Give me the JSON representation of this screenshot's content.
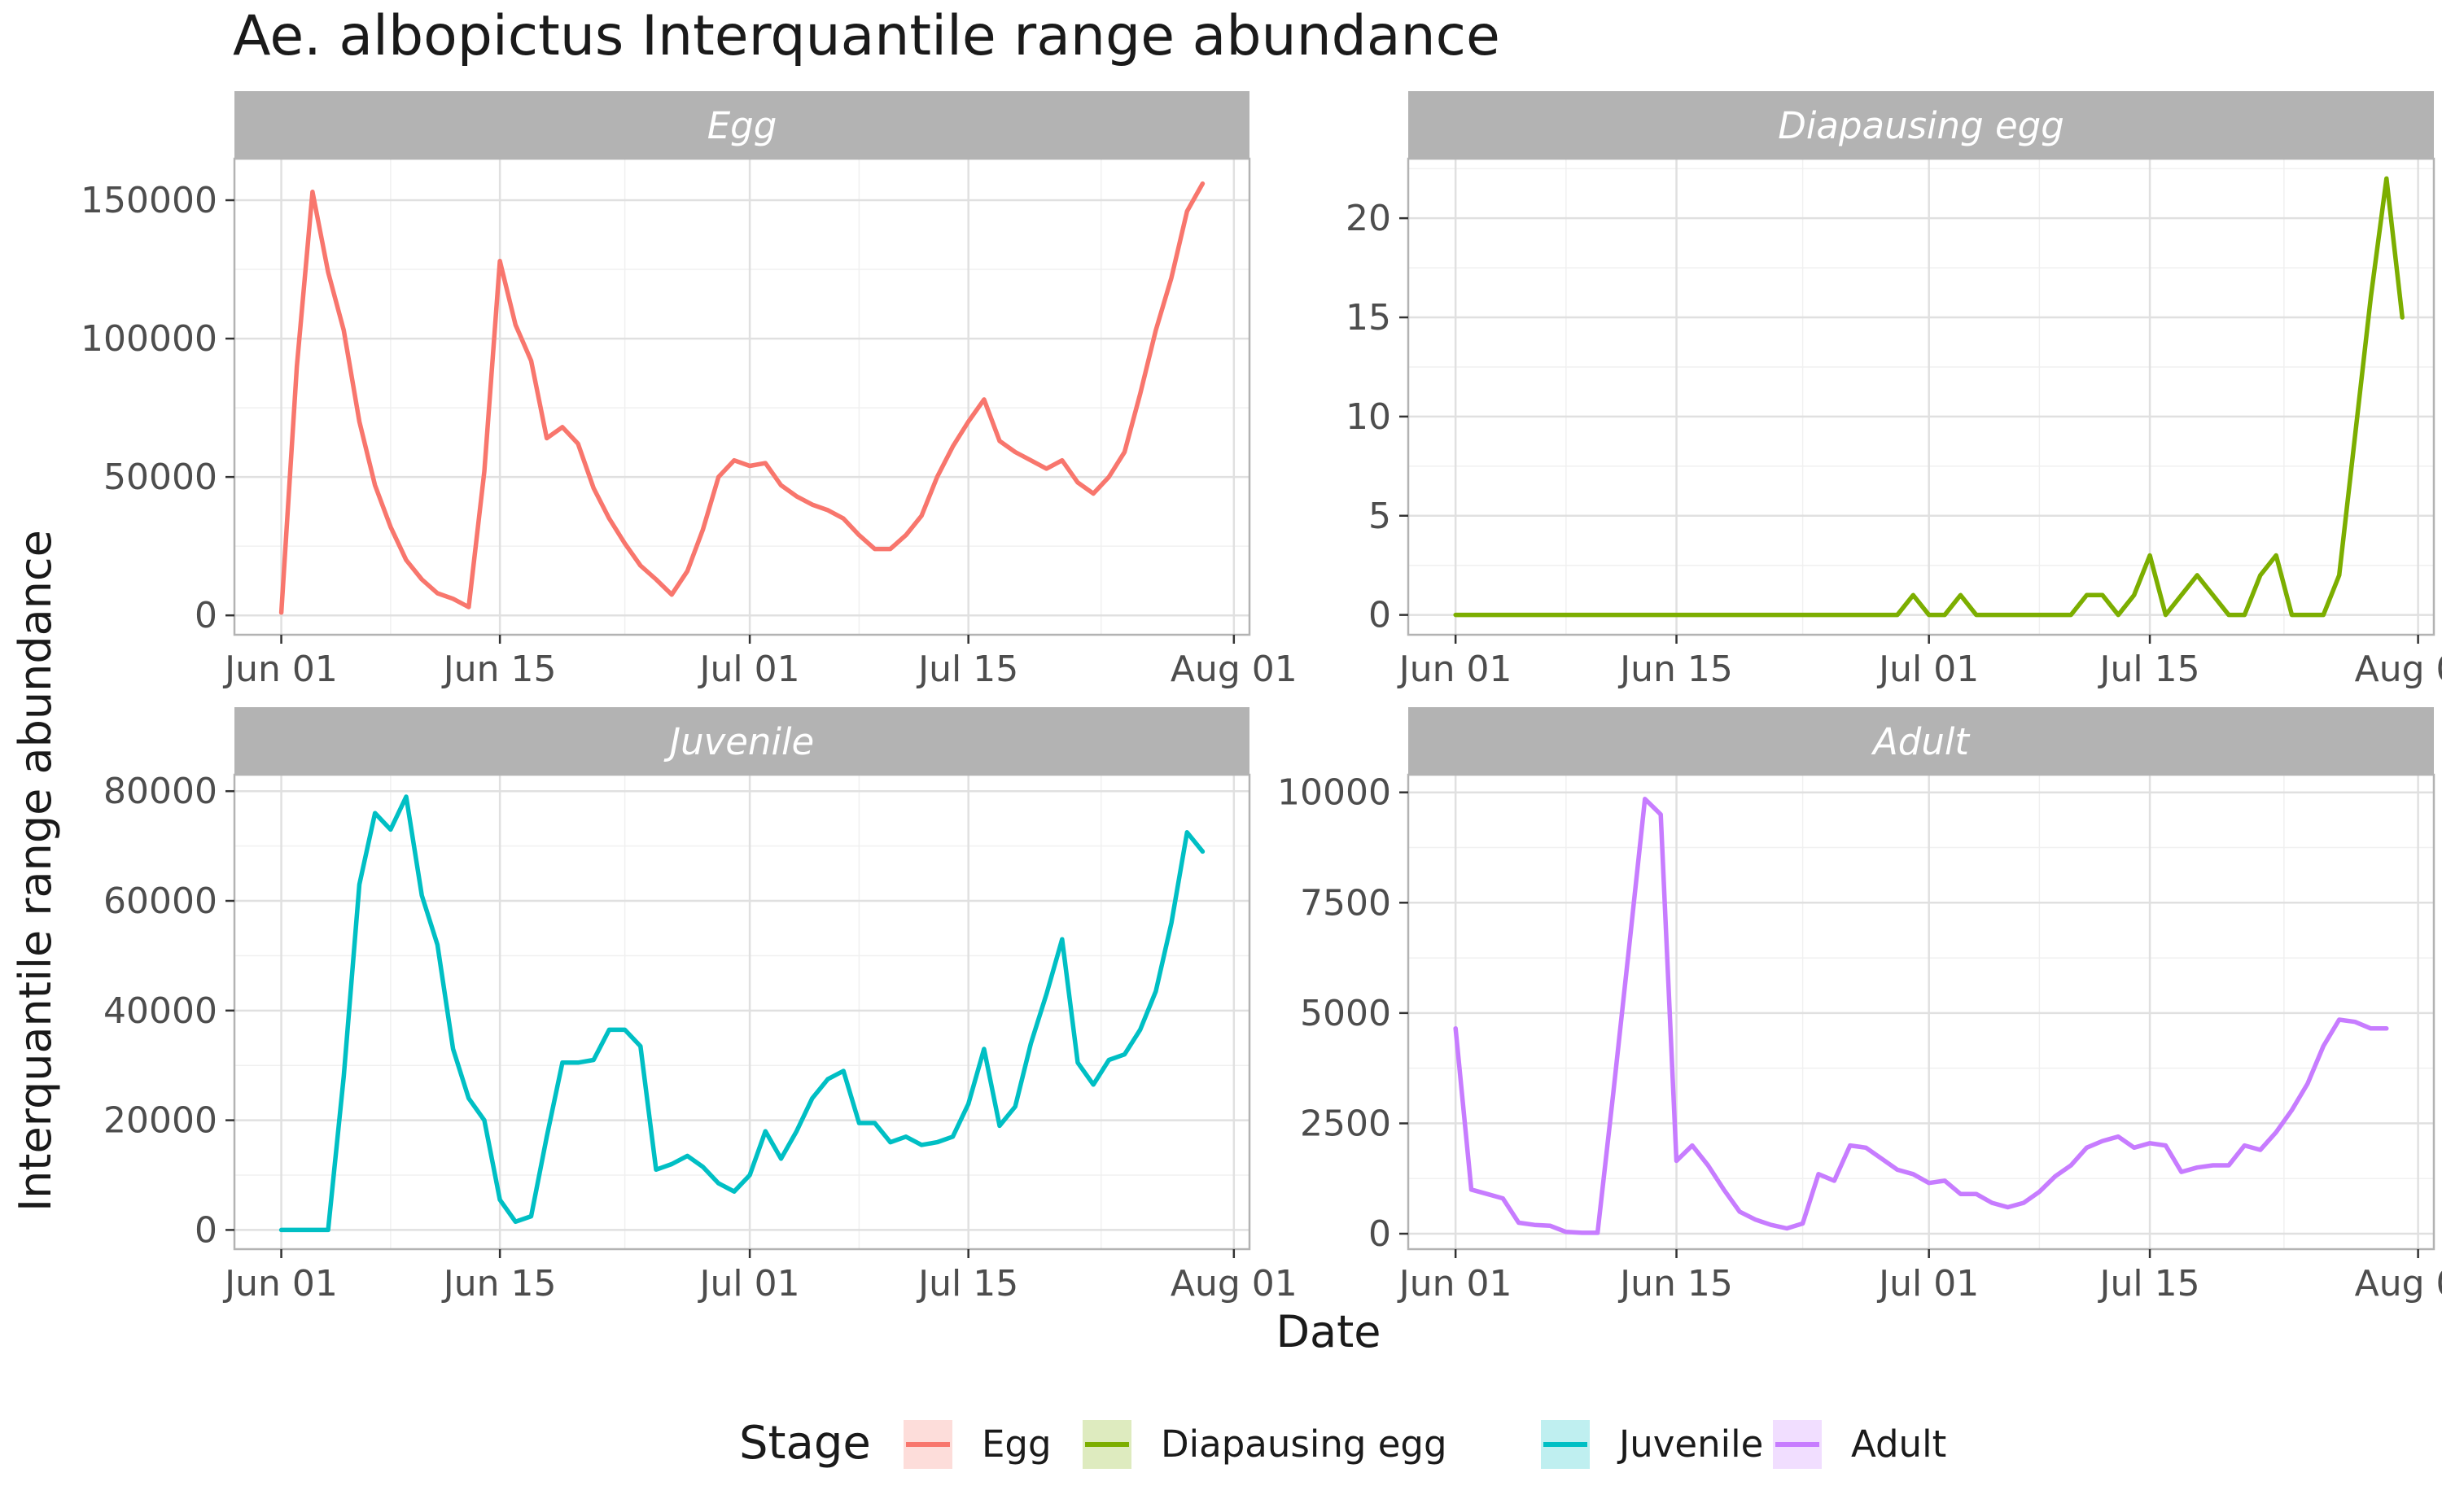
{
  "title": "Ae. albopictus Interquantile range abundance",
  "xlabel": "Date",
  "ylabel": "Interquantile range abundance",
  "legend": {
    "title": "Stage",
    "items": [
      {
        "label": "Egg",
        "color": "#F8766D"
      },
      {
        "label": "Diapausing egg",
        "color": "#7CAE00"
      },
      {
        "label": "Juvenile",
        "color": "#00BFC4"
      },
      {
        "label": "Adult",
        "color": "#C77CFF"
      }
    ]
  },
  "chart_data": {
    "type": "line",
    "facets": [
      {
        "name": "Egg",
        "color": "#F8766D",
        "ylim": [
          -7000,
          165000
        ],
        "yticks": [
          0,
          50000,
          100000,
          150000
        ],
        "ytick_labels": [
          "0",
          "50000",
          "100000",
          "150000"
        ],
        "points": [
          [
            "2021-06-01",
            1000
          ],
          [
            "2021-06-02",
            90000
          ],
          [
            "2021-06-03",
            153000
          ],
          [
            "2021-06-04",
            124000
          ],
          [
            "2021-06-05",
            103000
          ],
          [
            "2021-06-06",
            70000
          ],
          [
            "2021-06-07",
            47000
          ],
          [
            "2021-06-08",
            32000
          ],
          [
            "2021-06-09",
            20000
          ],
          [
            "2021-06-10",
            13000
          ],
          [
            "2021-06-11",
            8000
          ],
          [
            "2021-06-12",
            6000
          ],
          [
            "2021-06-13",
            3000
          ],
          [
            "2021-06-14",
            52000
          ],
          [
            "2021-06-15",
            128000
          ],
          [
            "2021-06-16",
            105000
          ],
          [
            "2021-06-17",
            92000
          ],
          [
            "2021-06-18",
            64000
          ],
          [
            "2021-06-19",
            68000
          ],
          [
            "2021-06-20",
            62000
          ],
          [
            "2021-06-21",
            46000
          ],
          [
            "2021-06-22",
            35000
          ],
          [
            "2021-06-23",
            26000
          ],
          [
            "2021-06-24",
            18000
          ],
          [
            "2021-06-25",
            13000
          ],
          [
            "2021-06-26",
            7500
          ],
          [
            "2021-06-27",
            16000
          ],
          [
            "2021-06-28",
            31000
          ],
          [
            "2021-06-29",
            50000
          ],
          [
            "2021-06-30",
            56000
          ],
          [
            "2021-07-01",
            54000
          ],
          [
            "2021-07-02",
            55000
          ],
          [
            "2021-07-03",
            47000
          ],
          [
            "2021-07-04",
            43000
          ],
          [
            "2021-07-05",
            40000
          ],
          [
            "2021-07-06",
            38000
          ],
          [
            "2021-07-07",
            35000
          ],
          [
            "2021-07-08",
            29000
          ],
          [
            "2021-07-09",
            24000
          ],
          [
            "2021-07-10",
            24000
          ],
          [
            "2021-07-11",
            29000
          ],
          [
            "2021-07-12",
            36000
          ],
          [
            "2021-07-13",
            50000
          ],
          [
            "2021-07-14",
            61000
          ],
          [
            "2021-07-15",
            70000
          ],
          [
            "2021-07-16",
            78000
          ],
          [
            "2021-07-17",
            63000
          ],
          [
            "2021-07-18",
            59000
          ],
          [
            "2021-07-19",
            56000
          ],
          [
            "2021-07-20",
            53000
          ],
          [
            "2021-07-21",
            56000
          ],
          [
            "2021-07-22",
            48000
          ],
          [
            "2021-07-23",
            44000
          ],
          [
            "2021-07-24",
            50000
          ],
          [
            "2021-07-25",
            59000
          ],
          [
            "2021-07-26",
            80000
          ],
          [
            "2021-07-27",
            103000
          ],
          [
            "2021-07-28",
            122000
          ],
          [
            "2021-07-29",
            146000
          ],
          [
            "2021-07-30",
            156000
          ]
        ]
      },
      {
        "name": "Diapausing egg",
        "color": "#7CAE00",
        "ylim": [
          -1,
          23
        ],
        "yticks": [
          0,
          5,
          10,
          15,
          20
        ],
        "ytick_labels": [
          "0",
          "5",
          "10",
          "15",
          "20"
        ],
        "points": [
          [
            "2021-06-01",
            0
          ],
          [
            "2021-06-02",
            0
          ],
          [
            "2021-06-03",
            0
          ],
          [
            "2021-06-04",
            0
          ],
          [
            "2021-06-05",
            0
          ],
          [
            "2021-06-06",
            0
          ],
          [
            "2021-06-07",
            0
          ],
          [
            "2021-06-08",
            0
          ],
          [
            "2021-06-09",
            0
          ],
          [
            "2021-06-10",
            0
          ],
          [
            "2021-06-11",
            0
          ],
          [
            "2021-06-12",
            0
          ],
          [
            "2021-06-13",
            0
          ],
          [
            "2021-06-14",
            0
          ],
          [
            "2021-06-15",
            0
          ],
          [
            "2021-06-16",
            0
          ],
          [
            "2021-06-17",
            0
          ],
          [
            "2021-06-18",
            0
          ],
          [
            "2021-06-19",
            0
          ],
          [
            "2021-06-20",
            0
          ],
          [
            "2021-06-21",
            0
          ],
          [
            "2021-06-22",
            0
          ],
          [
            "2021-06-23",
            0
          ],
          [
            "2021-06-24",
            0
          ],
          [
            "2021-06-25",
            0
          ],
          [
            "2021-06-26",
            0
          ],
          [
            "2021-06-27",
            0
          ],
          [
            "2021-06-28",
            0
          ],
          [
            "2021-06-29",
            0
          ],
          [
            "2021-06-30",
            1
          ],
          [
            "2021-07-01",
            0
          ],
          [
            "2021-07-02",
            0
          ],
          [
            "2021-07-03",
            1
          ],
          [
            "2021-07-04",
            0
          ],
          [
            "2021-07-05",
            0
          ],
          [
            "2021-07-06",
            0
          ],
          [
            "2021-07-07",
            0
          ],
          [
            "2021-07-08",
            0
          ],
          [
            "2021-07-09",
            0
          ],
          [
            "2021-07-10",
            0
          ],
          [
            "2021-07-11",
            1
          ],
          [
            "2021-07-12",
            1
          ],
          [
            "2021-07-13",
            0
          ],
          [
            "2021-07-14",
            1
          ],
          [
            "2021-07-15",
            3
          ],
          [
            "2021-07-16",
            0
          ],
          [
            "2021-07-17",
            1
          ],
          [
            "2021-07-18",
            2
          ],
          [
            "2021-07-19",
            1
          ],
          [
            "2021-07-20",
            0
          ],
          [
            "2021-07-21",
            0
          ],
          [
            "2021-07-22",
            2
          ],
          [
            "2021-07-23",
            3
          ],
          [
            "2021-07-24",
            0
          ],
          [
            "2021-07-25",
            0
          ],
          [
            "2021-07-26",
            0
          ],
          [
            "2021-07-27",
            2
          ],
          [
            "2021-07-28",
            9
          ],
          [
            "2021-07-29",
            16
          ],
          [
            "2021-07-30",
            22
          ],
          [
            "2021-07-31",
            15
          ]
        ]
      },
      {
        "name": "Juvenile",
        "color": "#00BFC4",
        "ylim": [
          -3500,
          83000
        ],
        "yticks": [
          0,
          20000,
          40000,
          60000,
          80000
        ],
        "ytick_labels": [
          "0",
          "20000",
          "40000",
          "60000",
          "80000"
        ],
        "points": [
          [
            "2021-06-01",
            0
          ],
          [
            "2021-06-02",
            0
          ],
          [
            "2021-06-03",
            0
          ],
          [
            "2021-06-04",
            0
          ],
          [
            "2021-06-05",
            28000
          ],
          [
            "2021-06-06",
            63000
          ],
          [
            "2021-06-07",
            76000
          ],
          [
            "2021-06-08",
            73000
          ],
          [
            "2021-06-09",
            79000
          ],
          [
            "2021-06-10",
            61000
          ],
          [
            "2021-06-11",
            52000
          ],
          [
            "2021-06-12",
            33000
          ],
          [
            "2021-06-13",
            24000
          ],
          [
            "2021-06-14",
            20000
          ],
          [
            "2021-06-15",
            5500
          ],
          [
            "2021-06-16",
            1500
          ],
          [
            "2021-06-17",
            2500
          ],
          [
            "2021-06-18",
            17000
          ],
          [
            "2021-06-19",
            30500
          ],
          [
            "2021-06-20",
            30500
          ],
          [
            "2021-06-21",
            31000
          ],
          [
            "2021-06-22",
            36500
          ],
          [
            "2021-06-23",
            36500
          ],
          [
            "2021-06-24",
            33500
          ],
          [
            "2021-06-25",
            11000
          ],
          [
            "2021-06-26",
            12000
          ],
          [
            "2021-06-27",
            13500
          ],
          [
            "2021-06-28",
            11500
          ],
          [
            "2021-06-29",
            8500
          ],
          [
            "2021-06-30",
            7000
          ],
          [
            "2021-07-01",
            10000
          ],
          [
            "2021-07-02",
            18000
          ],
          [
            "2021-07-03",
            13000
          ],
          [
            "2021-07-04",
            18000
          ],
          [
            "2021-07-05",
            24000
          ],
          [
            "2021-07-06",
            27500
          ],
          [
            "2021-07-07",
            29000
          ],
          [
            "2021-07-08",
            19500
          ],
          [
            "2021-07-09",
            19500
          ],
          [
            "2021-07-10",
            16000
          ],
          [
            "2021-07-11",
            17000
          ],
          [
            "2021-07-12",
            15500
          ],
          [
            "2021-07-13",
            16000
          ],
          [
            "2021-07-14",
            17000
          ],
          [
            "2021-07-15",
            23000
          ],
          [
            "2021-07-16",
            33000
          ],
          [
            "2021-07-17",
            19000
          ],
          [
            "2021-07-18",
            22500
          ],
          [
            "2021-07-19",
            34000
          ],
          [
            "2021-07-20",
            43000
          ],
          [
            "2021-07-21",
            53000
          ],
          [
            "2021-07-22",
            30500
          ],
          [
            "2021-07-23",
            26500
          ],
          [
            "2021-07-24",
            31000
          ],
          [
            "2021-07-25",
            32000
          ],
          [
            "2021-07-26",
            36500
          ],
          [
            "2021-07-27",
            43500
          ],
          [
            "2021-07-28",
            56000
          ],
          [
            "2021-07-29",
            72500
          ],
          [
            "2021-07-30",
            69000
          ]
        ]
      },
      {
        "name": "Adult",
        "color": "#C77CFF",
        "ylim": [
          -350,
          10400
        ],
        "yticks": [
          0,
          2500,
          5000,
          7500,
          10000
        ],
        "ytick_labels": [
          "0",
          "2500",
          "5000",
          "7500",
          "10000"
        ],
        "points": [
          [
            "2021-06-01",
            4650
          ],
          [
            "2021-06-02",
            1000
          ],
          [
            "2021-06-03",
            900
          ],
          [
            "2021-06-04",
            800
          ],
          [
            "2021-06-05",
            250
          ],
          [
            "2021-06-06",
            200
          ],
          [
            "2021-06-07",
            180
          ],
          [
            "2021-06-08",
            40
          ],
          [
            "2021-06-09",
            20
          ],
          [
            "2021-06-10",
            20
          ],
          [
            "2021-06-11",
            3200
          ],
          [
            "2021-06-12",
            6500
          ],
          [
            "2021-06-13",
            9850
          ],
          [
            "2021-06-14",
            9500
          ],
          [
            "2021-06-15",
            1650
          ],
          [
            "2021-06-16",
            2000
          ],
          [
            "2021-06-17",
            1550
          ],
          [
            "2021-06-18",
            1000
          ],
          [
            "2021-06-19",
            500
          ],
          [
            "2021-06-20",
            320
          ],
          [
            "2021-06-21",
            200
          ],
          [
            "2021-06-22",
            120
          ],
          [
            "2021-06-23",
            230
          ],
          [
            "2021-06-24",
            1350
          ],
          [
            "2021-06-25",
            1200
          ],
          [
            "2021-06-26",
            2000
          ],
          [
            "2021-06-27",
            1950
          ],
          [
            "2021-06-28",
            1700
          ],
          [
            "2021-06-29",
            1450
          ],
          [
            "2021-06-30",
            1350
          ],
          [
            "2021-07-01",
            1150
          ],
          [
            "2021-07-02",
            1200
          ],
          [
            "2021-07-03",
            900
          ],
          [
            "2021-07-04",
            900
          ],
          [
            "2021-07-05",
            700
          ],
          [
            "2021-07-06",
            600
          ],
          [
            "2021-07-07",
            700
          ],
          [
            "2021-07-08",
            950
          ],
          [
            "2021-07-09",
            1300
          ],
          [
            "2021-07-10",
            1550
          ],
          [
            "2021-07-11",
            1950
          ],
          [
            "2021-07-12",
            2100
          ],
          [
            "2021-07-13",
            2200
          ],
          [
            "2021-07-14",
            1950
          ],
          [
            "2021-07-15",
            2050
          ],
          [
            "2021-07-16",
            2000
          ],
          [
            "2021-07-17",
            1400
          ],
          [
            "2021-07-18",
            1500
          ],
          [
            "2021-07-19",
            1550
          ],
          [
            "2021-07-20",
            1550
          ],
          [
            "2021-07-21",
            2000
          ],
          [
            "2021-07-22",
            1900
          ],
          [
            "2021-07-23",
            2300
          ],
          [
            "2021-07-24",
            2800
          ],
          [
            "2021-07-25",
            3400
          ],
          [
            "2021-07-26",
            4250
          ],
          [
            "2021-07-27",
            4850
          ],
          [
            "2021-07-28",
            4800
          ],
          [
            "2021-07-29",
            4650
          ],
          [
            "2021-07-30",
            4650
          ]
        ]
      }
    ],
    "xlim": [
      "2021-05-29",
      "2021-08-02"
    ],
    "xticks": [
      "2021-06-01",
      "2021-06-15",
      "2021-07-01",
      "2021-07-15",
      "2021-08-01"
    ],
    "xtick_labels": [
      "Jun 01",
      "Jun 15",
      "Jul 01",
      "Jul 15",
      "Aug 01"
    ],
    "grid": true,
    "legend_position": "bottom"
  }
}
